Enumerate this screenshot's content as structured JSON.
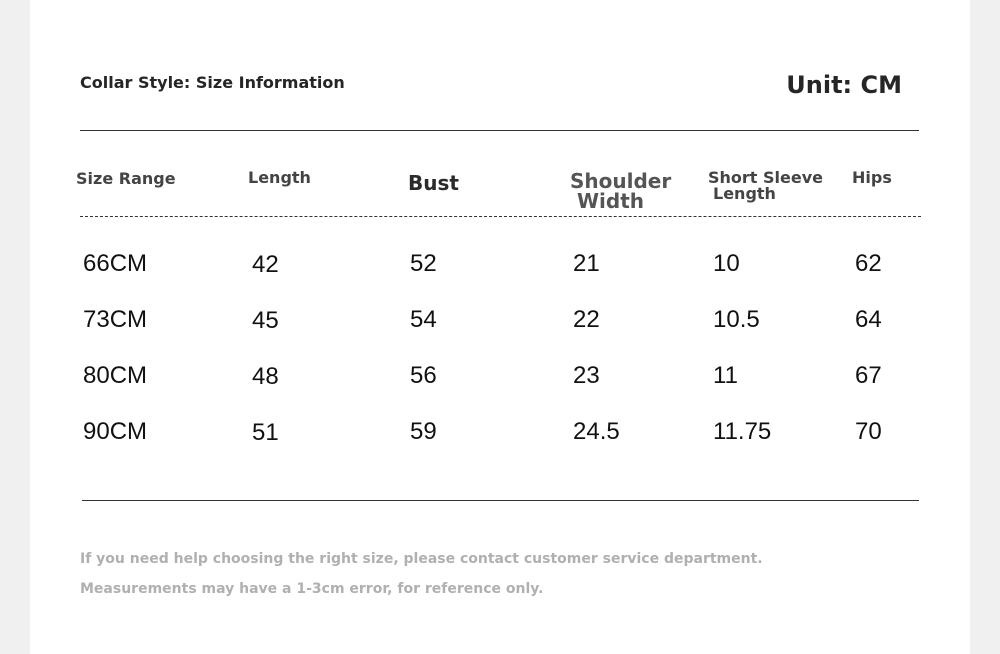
{
  "header": {
    "title": "Collar Style: Size Information",
    "unit": "Unit: CM"
  },
  "table": {
    "columns": [
      {
        "label": "Size Range"
      },
      {
        "label": "Length"
      },
      {
        "label": "Bust"
      },
      {
        "label_line1": "Shoulder",
        "label_line2": "Width"
      },
      {
        "label_line1": "Short Sleeve",
        "label_line2": "Length"
      },
      {
        "label": "Hips"
      }
    ],
    "rows": [
      [
        "66CM",
        "42",
        "52",
        "21",
        "10",
        "62"
      ],
      [
        "73CM",
        "45",
        "54",
        "22",
        "10.5",
        "64"
      ],
      [
        "80CM",
        "48",
        "56",
        "23",
        "11",
        "67"
      ],
      [
        "90CM",
        "51",
        "59",
        "24.5",
        "11.75",
        "70"
      ]
    ]
  },
  "notes": [
    "If you need help choosing the right size, please contact customer service department.",
    "Measurements may have a 1-3cm error, for reference only."
  ]
}
